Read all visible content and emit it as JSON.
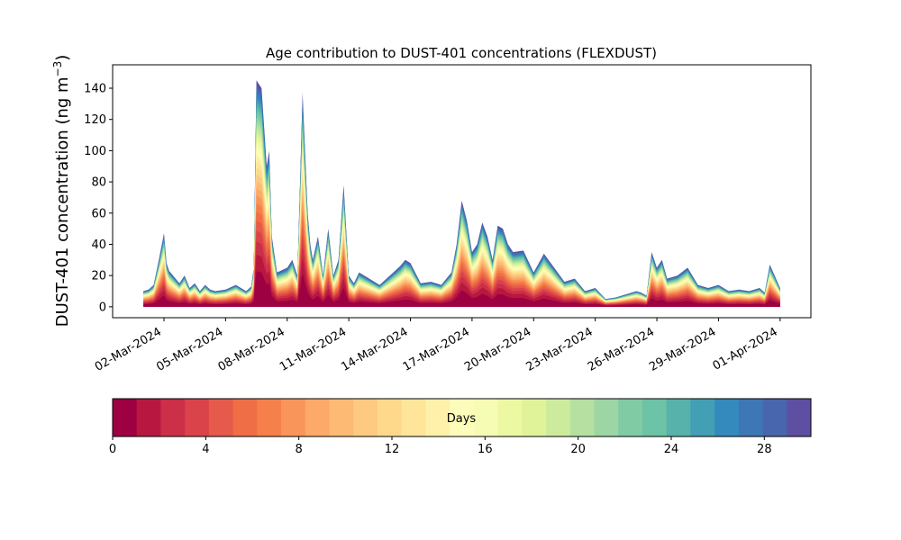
{
  "chart_data": {
    "type": "area",
    "title": "Age contribution to DUST-401 concentrations (FLEXDUST)",
    "ylabel": "DUST-401 concentration (ng m",
    "ylabel_sup": "−3",
    "ylabel_close": ")",
    "xlabel": "",
    "ylim": [
      -7,
      155
    ],
    "yticks": [
      0,
      20,
      40,
      60,
      80,
      100,
      120,
      140
    ],
    "xlim": [
      "2024-02-28T12:00",
      "2024-04-02T12:00"
    ],
    "xticks": [
      {
        "date": "2024-03-02",
        "label": "02-Mar-2024"
      },
      {
        "date": "2024-03-05",
        "label": "05-Mar-2024"
      },
      {
        "date": "2024-03-08",
        "label": "08-Mar-2024"
      },
      {
        "date": "2024-03-11",
        "label": "11-Mar-2024"
      },
      {
        "date": "2024-03-14",
        "label": "14-Mar-2024"
      },
      {
        "date": "2024-03-17",
        "label": "17-Mar-2024"
      },
      {
        "date": "2024-03-20",
        "label": "20-Mar-2024"
      },
      {
        "date": "2024-03-23",
        "label": "23-Mar-2024"
      },
      {
        "date": "2024-03-26",
        "label": "26-Mar-2024"
      },
      {
        "date": "2024-03-29",
        "label": "29-Mar-2024"
      },
      {
        "date": "2024-04-01",
        "label": "01-Apr-2024"
      }
    ],
    "grid": false,
    "legend": "colorbar-bottom",
    "colorbar": {
      "label": "Days",
      "range": [
        0,
        30
      ],
      "ticks": [
        0,
        4,
        8,
        12,
        16,
        20,
        24,
        28
      ],
      "colors": [
        "#9e0142",
        "#b8183f",
        "#cc2f48",
        "#db434b",
        "#e55a4a",
        "#ef6e45",
        "#f6804b",
        "#f9955a",
        "#fca969",
        "#fdba74",
        "#fec980",
        "#fed98b",
        "#fee59a",
        "#fff1a9",
        "#fefcba",
        "#f7fcb4",
        "#edf8a2",
        "#e0f399",
        "#cdeb9d",
        "#b5e0a1",
        "#9dd6a4",
        "#80cba4",
        "#6cc3a5",
        "#56b2ab",
        "#439fb4",
        "#3489bd",
        "#3d77b6",
        "#4866ad",
        "#5e4fa2"
      ]
    },
    "total": {
      "dates": [
        "2024-03-01T00:00",
        "2024-03-01T06:00",
        "2024-03-01T12:00",
        "2024-03-01T18:00",
        "2024-03-02T00:00",
        "2024-03-02T03:00",
        "2024-03-02T06:00",
        "2024-03-02T12:00",
        "2024-03-02T18:00",
        "2024-03-03T00:00",
        "2024-03-03T06:00",
        "2024-03-03T12:00",
        "2024-03-03T18:00",
        "2024-03-04T00:00",
        "2024-03-04T06:00",
        "2024-03-04T12:00",
        "2024-03-05T00:00",
        "2024-03-05T12:00",
        "2024-03-06T00:00",
        "2024-03-06T06:00",
        "2024-03-06T09:00",
        "2024-03-06T12:00",
        "2024-03-06T18:00",
        "2024-03-07T00:00",
        "2024-03-07T03:00",
        "2024-03-07T06:00",
        "2024-03-07T12:00",
        "2024-03-08T00:00",
        "2024-03-08T06:00",
        "2024-03-08T12:00",
        "2024-03-08T18:00",
        "2024-03-09T00:00",
        "2024-03-09T03:00",
        "2024-03-09T06:00",
        "2024-03-09T12:00",
        "2024-03-09T18:00",
        "2024-03-10T00:00",
        "2024-03-10T06:00",
        "2024-03-10T12:00",
        "2024-03-10T18:00",
        "2024-03-11T00:00",
        "2024-03-11T06:00",
        "2024-03-11T12:00",
        "2024-03-12T00:00",
        "2024-03-12T12:00",
        "2024-03-13T00:00",
        "2024-03-13T12:00",
        "2024-03-13T18:00",
        "2024-03-14T00:00",
        "2024-03-14T12:00",
        "2024-03-15T00:00",
        "2024-03-15T06:00",
        "2024-03-15T12:00",
        "2024-03-15T18:00",
        "2024-03-16T00:00",
        "2024-03-16T06:00",
        "2024-03-16T12:00",
        "2024-03-16T18:00",
        "2024-03-17T00:00",
        "2024-03-17T06:00",
        "2024-03-17T12:00",
        "2024-03-17T18:00",
        "2024-03-18T00:00",
        "2024-03-18T06:00",
        "2024-03-18T12:00",
        "2024-03-18T18:00",
        "2024-03-19T00:00",
        "2024-03-19T12:00",
        "2024-03-20T00:00",
        "2024-03-20T12:00",
        "2024-03-21T00:00",
        "2024-03-21T12:00",
        "2024-03-22T00:00",
        "2024-03-22T12:00",
        "2024-03-23T00:00",
        "2024-03-23T12:00",
        "2024-03-24T00:00",
        "2024-03-24T12:00",
        "2024-03-25T00:00",
        "2024-03-25T06:00",
        "2024-03-25T12:00",
        "2024-03-25T18:00",
        "2024-03-26T00:00",
        "2024-03-26T06:00",
        "2024-03-26T12:00",
        "2024-03-27T00:00",
        "2024-03-27T12:00",
        "2024-03-28T00:00",
        "2024-03-28T12:00",
        "2024-03-29T00:00",
        "2024-03-29T12:00",
        "2024-03-30T00:00",
        "2024-03-30T12:00",
        "2024-03-31T00:00",
        "2024-03-31T06:00",
        "2024-03-31T12:00",
        "2024-04-01T00:00"
      ],
      "values": [
        10,
        11,
        14,
        30,
        47,
        28,
        23,
        19,
        15,
        20,
        12,
        15,
        10,
        14,
        11,
        10,
        11,
        14,
        10,
        13,
        25,
        145,
        140,
        90,
        100,
        45,
        22,
        25,
        30,
        20,
        137,
        60,
        40,
        30,
        45,
        20,
        50,
        20,
        30,
        78,
        20,
        15,
        22,
        18,
        14,
        20,
        26,
        30,
        28,
        15,
        16,
        15,
        14,
        18,
        22,
        40,
        68,
        55,
        35,
        40,
        54,
        45,
        30,
        52,
        50,
        40,
        35,
        36,
        22,
        34,
        25,
        16,
        18,
        10,
        12,
        5,
        6,
        8,
        10,
        9,
        7,
        35,
        25,
        30,
        18,
        20,
        25,
        14,
        12,
        14,
        10,
        11,
        10,
        12,
        9,
        27,
        12
      ]
    }
  }
}
